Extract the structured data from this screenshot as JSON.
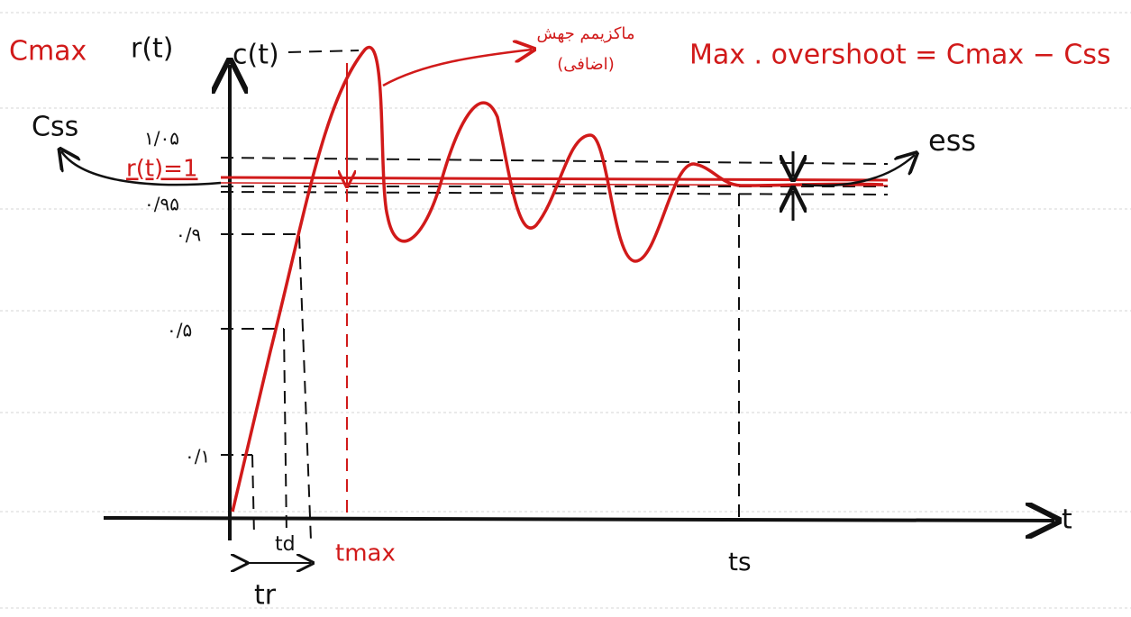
{
  "labels": {
    "cmax": "Cmax",
    "rt": "r(t)",
    "ct": "c(t)",
    "css": "Css",
    "tick_105": "۱/۰۵",
    "rt_eq_1": "r(t)=1",
    "tick_095": "۰/۹۵",
    "tick_09": "۰/۹",
    "tick_05": "۰/۵",
    "tick_01": "۰/۱",
    "ess": "ess",
    "overshoot_formula": "Max . overshoot = Cmax − Css",
    "note_line1": "ماکزیمم جهش",
    "note_line2": "(اضافی)",
    "t_axis": "t",
    "td": "td",
    "tmax": "tmax",
    "ts": "ts",
    "tr": "tr"
  }
}
